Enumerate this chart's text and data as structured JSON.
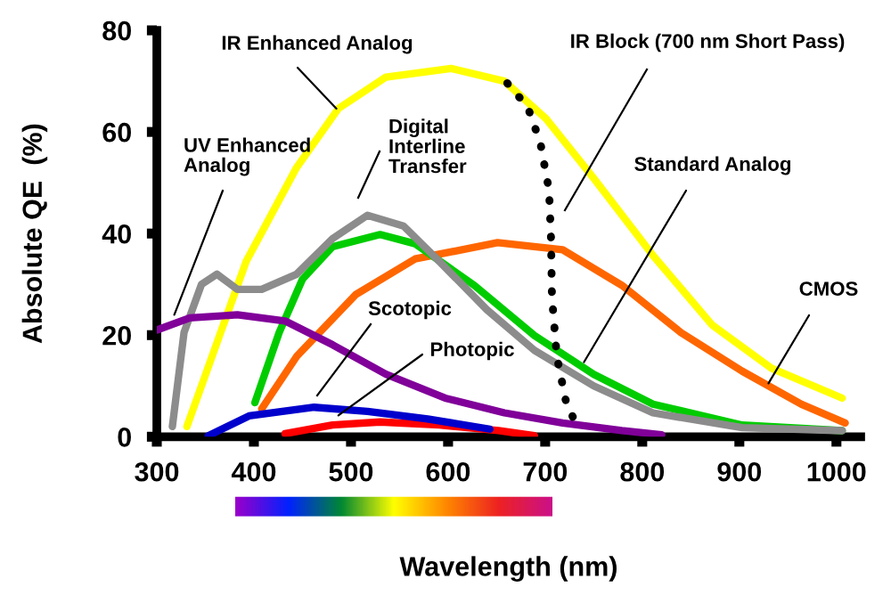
{
  "chart_data": {
    "type": "line",
    "xlabel": "Wavelength (nm)",
    "ylabel": "Absolute QE  (%)",
    "xlim": [
      300,
      1025
    ],
    "ylim": [
      0,
      80
    ],
    "xticks": [
      300,
      400,
      500,
      600,
      700,
      800,
      900,
      1000
    ],
    "yticks": [
      0,
      20,
      40,
      60,
      80
    ],
    "grid": false,
    "legend": false,
    "marker": "none",
    "series": [
      {
        "color": "#ffff00",
        "x": [
          331,
          392,
          444,
          487,
          536,
          603,
          658,
          701,
          750,
          811,
          872,
          933,
          1006
        ],
        "values": [
          2,
          34.5,
          53,
          64.6,
          70.8,
          72.5,
          70,
          62.6,
          50.9,
          35.7,
          22,
          13.5,
          7.6
        ]
      },
      {
        "color": "#ff6600",
        "x": [
          408,
          444,
          505,
          566,
          651,
          718,
          779,
          840,
          903,
          964,
          1009
        ],
        "values": [
          5.5,
          15.8,
          28,
          35,
          38.2,
          36.8,
          29.8,
          20.5,
          12.9,
          6.4,
          2.7
        ]
      },
      {
        "color": "#00cc00",
        "x": [
          401,
          426,
          450,
          481,
          530,
          566,
          627,
          689,
          750,
          811,
          903,
          1006
        ],
        "values": [
          6.7,
          20.5,
          31,
          37.4,
          39.8,
          38,
          29.8,
          19.9,
          12.3,
          6.4,
          2.3,
          1.2
        ]
      },
      {
        "color": "#8c8c8c",
        "x": [
          316,
          328,
          346,
          362,
          383,
          408,
          444,
          481,
          517,
          554,
          591,
          640,
          689,
          750,
          811,
          903,
          1006
        ],
        "values": [
          2,
          20.5,
          30,
          32,
          29,
          29,
          32,
          39,
          43.6,
          41.5,
          34.5,
          25,
          17,
          10,
          4.7,
          1.8,
          1.2
        ]
      },
      {
        "color": "#800099",
        "x": [
          300,
          334,
          383,
          432,
          481,
          536,
          597,
          658,
          718,
          779,
          820
        ],
        "values": [
          21,
          23.4,
          24,
          22.8,
          18.1,
          12.3,
          7.6,
          4.7,
          2.7,
          1.2,
          0.4
        ]
      },
      {
        "color": "#ff0000",
        "x": [
          432,
          481,
          530,
          591,
          652,
          689
        ],
        "values": [
          0.6,
          2.3,
          2.9,
          2.3,
          1.2,
          0.2
        ]
      },
      {
        "color": "#0000cc",
        "x": [
          353,
          395,
          462,
          517,
          579,
          643
        ],
        "values": [
          0.2,
          4.1,
          5.8,
          5,
          3.5,
          1.5
        ]
      },
      {
        "color": "#000000",
        "line_style": "dotted",
        "x": [
          661,
          682,
          695,
          704,
          706,
          707,
          712,
          722,
          734
        ],
        "values": [
          69.6,
          64.9,
          57.9,
          48.5,
          39.2,
          27.5,
          15.8,
          6.4,
          1.8
        ]
      }
    ],
    "annotations": [
      {
        "text": "IR Enhanced Analog",
        "x": 485,
        "y": 64.6
      },
      "IR Block (700 nm Short Pass)",
      "Digital\nInterline\nTransfer",
      {
        "text": "UV Enhanced\nAnalog",
        "x": 318,
        "y": 24
      },
      {
        "text": "Standard Analog",
        "x": 740,
        "y": 14.7
      },
      {
        "text": "CMOS",
        "x": 930,
        "y": 10.5
      },
      "Scotopic",
      {
        "text": "Photopic",
        "x": 487,
        "y": 4.2
      }
    ]
  }
}
